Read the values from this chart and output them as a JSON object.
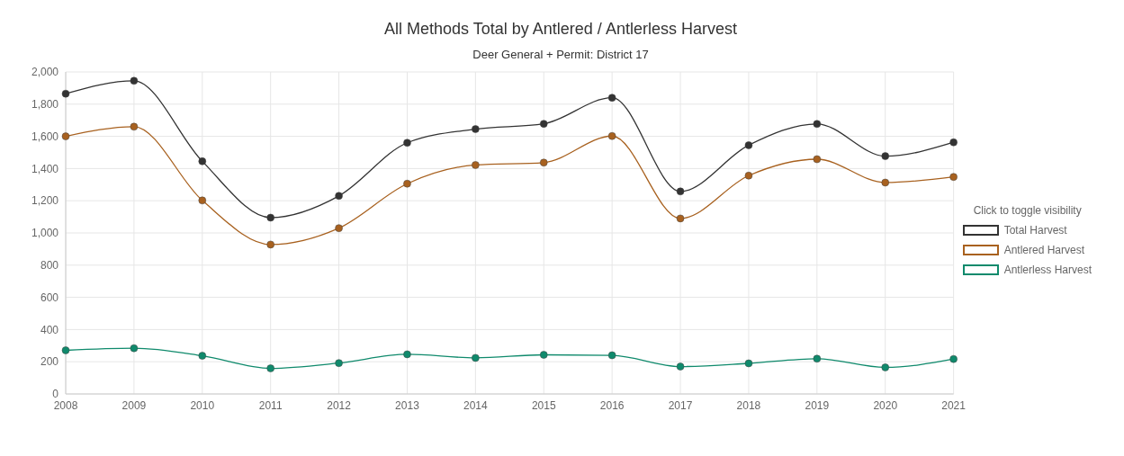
{
  "chart_data": {
    "type": "line",
    "title": "All Methods Total by Antlered / Antlerless Harvest",
    "subtitle": "Deer General + Permit: District 17",
    "categories": [
      "2008",
      "2009",
      "2010",
      "2011",
      "2012",
      "2013",
      "2014",
      "2015",
      "2016",
      "2017",
      "2018",
      "2019",
      "2020",
      "2021"
    ],
    "series": [
      {
        "name": "Total Harvest",
        "color": "#333333",
        "values": [
          1865,
          1945,
          1445,
          1095,
          1230,
          1560,
          1645,
          1678,
          1840,
          1258,
          1545,
          1677,
          1477,
          1563
        ]
      },
      {
        "name": "Antlered Harvest",
        "color": "#a8611f",
        "values": [
          1600,
          1660,
          1202,
          928,
          1030,
          1306,
          1422,
          1437,
          1602,
          1090,
          1356,
          1458,
          1313,
          1348
        ]
      },
      {
        "name": "Antlerless Harvest",
        "color": "#0f8a6c",
        "values": [
          271,
          284,
          237,
          159,
          192,
          246,
          224,
          243,
          240,
          170,
          190,
          219,
          165,
          217
        ]
      }
    ],
    "ylim": [
      0,
      2000
    ],
    "yticks": [
      {
        "value": 0,
        "label": "0"
      },
      {
        "value": 200,
        "label": "200"
      },
      {
        "value": 400,
        "label": "400"
      },
      {
        "value": 600,
        "label": "600"
      },
      {
        "value": 800,
        "label": "800"
      },
      {
        "value": 1000,
        "label": "1,000"
      },
      {
        "value": 1200,
        "label": "1,200"
      },
      {
        "value": 1400,
        "label": "1,400"
      },
      {
        "value": 1600,
        "label": "1,600"
      },
      {
        "value": 1800,
        "label": "1,800"
      },
      {
        "value": 2000,
        "label": "2,000"
      }
    ],
    "grid": true,
    "legend": "right",
    "legend_title": "Click to toggle visibility",
    "marker": "circle",
    "line_style": "solid"
  }
}
